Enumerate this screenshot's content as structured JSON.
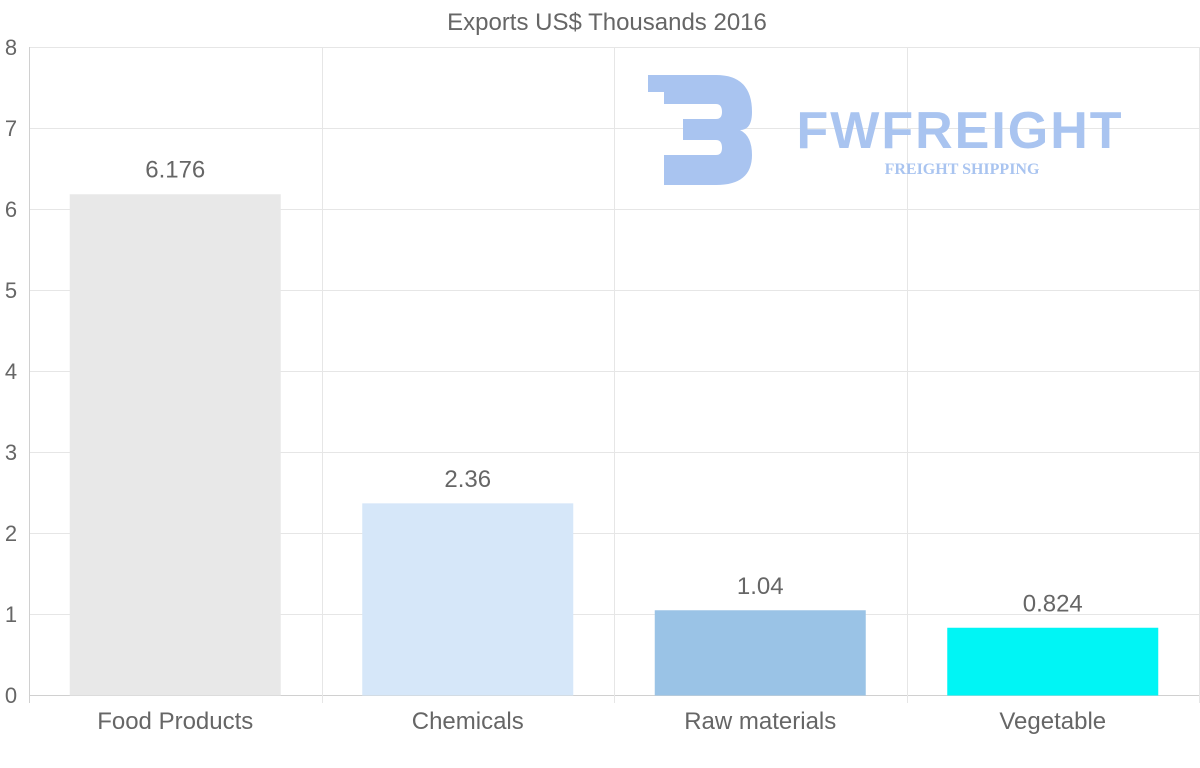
{
  "chart_data": {
    "type": "bar",
    "title": "Exports US$ Thousands 2016",
    "xlabel": "",
    "ylabel": "",
    "categories": [
      "Food Products",
      "Chemicals",
      "Raw materials",
      "Vegetable"
    ],
    "values": [
      6.176,
      2.36,
      1.04,
      0.824
    ],
    "value_labels": [
      "6.176",
      "2.36",
      "1.04",
      "0.824"
    ],
    "bar_colors": [
      "#e8e8e8",
      "#d6e7f9",
      "#9ac3e6",
      "#00f5f5"
    ],
    "ylim": [
      0,
      8
    ],
    "yticks": [
      "0",
      "1",
      "2",
      "3",
      "4",
      "5",
      "6",
      "7",
      "8"
    ],
    "grid": true,
    "legend": "none"
  },
  "watermark": {
    "name": "FWFREIGHT",
    "tagline": "FREIGHT SHIPPING",
    "color": "#a9c4f0"
  },
  "colors": {
    "grid": "#e6e6e6",
    "axis": "#d0d0d0",
    "text": "#666666"
  }
}
